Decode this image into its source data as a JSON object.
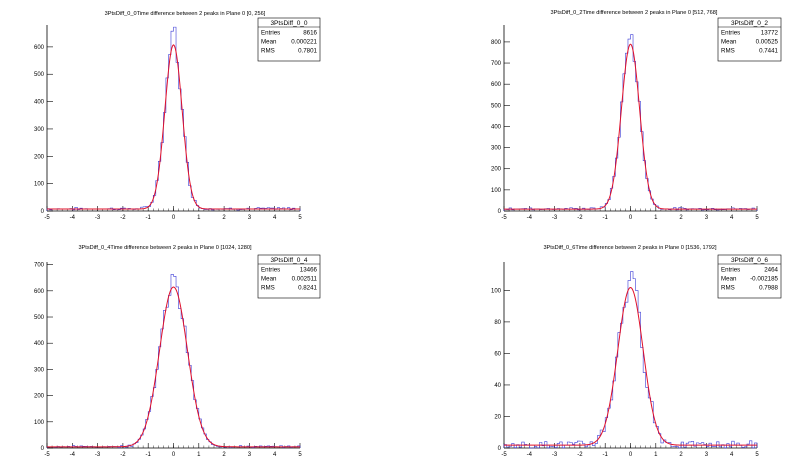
{
  "chart_data": [
    {
      "type": "histogram",
      "title": "3PtsDiff_0_0Time difference between 2 peaks in Plane 0 [0, 256]",
      "stats": {
        "name": "3PtsDiff_0_0",
        "rows": [
          [
            "Entries",
            "8616"
          ],
          [
            "Mean",
            "0.000221"
          ],
          [
            "RMS",
            "0.7801"
          ]
        ]
      },
      "xlim": [
        -5,
        5
      ],
      "ylim": [
        0,
        680
      ],
      "x_ticks": [
        -5,
        -4,
        -3,
        -2,
        -1,
        0,
        1,
        2,
        3,
        4,
        5
      ],
      "y_ticks": [
        0,
        100,
        200,
        300,
        400,
        500,
        600
      ],
      "fit": {
        "type": "gaussian",
        "amplitude": 600,
        "mean": 0.0,
        "sigma": 0.34
      },
      "series": [
        {
          "kind": "histogram",
          "color": "#3b3bd6"
        },
        {
          "kind": "fit",
          "color": "#e0102a"
        }
      ],
      "hist_peak": 650,
      "tail_level": 8
    },
    {
      "type": "histogram",
      "title": "3PtsDiff_0_2Time difference between 2 peaks in Plane 0 [512, 768]",
      "stats": {
        "name": "3PtsDiff_0_2",
        "rows": [
          [
            "Entries",
            "13772"
          ],
          [
            "Mean",
            "0.00525"
          ],
          [
            "RMS",
            "0.7441"
          ]
        ]
      },
      "xlim": [
        -5,
        5
      ],
      "ylim": [
        0,
        880
      ],
      "x_ticks": [
        -5,
        -4,
        -3,
        -2,
        -1,
        0,
        1,
        2,
        3,
        4,
        5
      ],
      "y_ticks": [
        0,
        100,
        200,
        300,
        400,
        500,
        600,
        700,
        800
      ],
      "fit": {
        "type": "gaussian",
        "amplitude": 780,
        "mean": 0.0,
        "sigma": 0.36
      },
      "series": [
        {
          "kind": "histogram",
          "color": "#3b3bd6"
        },
        {
          "kind": "fit",
          "color": "#e0102a"
        }
      ],
      "hist_peak": 830,
      "tail_level": 10
    },
    {
      "type": "histogram",
      "title": "3PtsDiff_0_4Time difference between 2 peaks in Plane 0 [1024, 1280]",
      "stats": {
        "name": "3PtsDiff_0_4",
        "rows": [
          [
            "Entries",
            "13466"
          ],
          [
            "Mean",
            "0.002511"
          ],
          [
            "RMS",
            "0.8241"
          ]
        ]
      },
      "xlim": [
        -5,
        5
      ],
      "ylim": [
        0,
        710
      ],
      "x_ticks": [
        -5,
        -4,
        -3,
        -2,
        -1,
        0,
        1,
        2,
        3,
        4,
        5
      ],
      "y_ticks": [
        0,
        100,
        200,
        300,
        400,
        500,
        600,
        700
      ],
      "fit": {
        "type": "gaussian",
        "amplitude": 610,
        "mean": 0.0,
        "sigma": 0.55
      },
      "series": [
        {
          "kind": "histogram",
          "color": "#3b3bd6"
        },
        {
          "kind": "fit",
          "color": "#e0102a"
        }
      ],
      "hist_peak": 665,
      "tail_level": 5
    },
    {
      "type": "histogram",
      "title": "3PtsDiff_0_6Time difference between 2 peaks in Plane 0 [1536, 1792]",
      "stats": {
        "name": "3PtsDiff_0_6",
        "rows": [
          [
            "Entries",
            "2464"
          ],
          [
            "Mean",
            "-0.002185"
          ],
          [
            "RMS",
            "0.7988"
          ]
        ]
      },
      "xlim": [
        -5,
        5
      ],
      "ylim": [
        0,
        118
      ],
      "x_ticks": [
        -5,
        -4,
        -3,
        -2,
        -1,
        0,
        1,
        2,
        3,
        4,
        5
      ],
      "y_ticks": [
        0,
        20,
        40,
        60,
        80,
        100
      ],
      "fit": {
        "type": "gaussian",
        "amplitude": 100,
        "mean": 0.0,
        "sigma": 0.5
      },
      "series": [
        {
          "kind": "histogram",
          "color": "#3b3bd6"
        },
        {
          "kind": "fit",
          "color": "#e0102a"
        }
      ],
      "hist_peak": 112,
      "tail_level": 2
    }
  ]
}
